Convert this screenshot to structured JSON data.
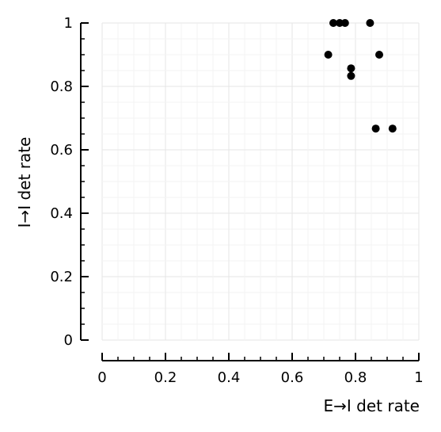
{
  "chart_data": {
    "type": "scatter",
    "xlabel": "E→I det rate",
    "ylabel": "I→I det rate",
    "xlim": [
      0,
      1
    ],
    "ylim": [
      0,
      1
    ],
    "grid": true,
    "x_ticks": [
      0,
      0.2,
      0.4,
      0.6,
      0.8,
      1
    ],
    "x_tick_labels": [
      "0",
      "0.2",
      "0.4",
      "0.6",
      "0.8",
      "1"
    ],
    "y_ticks": [
      0,
      0.2,
      0.4,
      0.6,
      0.8,
      1
    ],
    "y_tick_labels": [
      "0",
      "0.2",
      "0.4",
      "0.6",
      "0.8",
      "1"
    ],
    "points": [
      {
        "x": 0.73,
        "y": 1.0
      },
      {
        "x": 0.75,
        "y": 1.0
      },
      {
        "x": 0.767,
        "y": 1.0
      },
      {
        "x": 0.846,
        "y": 1.0
      },
      {
        "x": 0.714,
        "y": 0.9
      },
      {
        "x": 0.875,
        "y": 0.9
      },
      {
        "x": 0.786,
        "y": 0.857
      },
      {
        "x": 0.786,
        "y": 0.833
      },
      {
        "x": 0.864,
        "y": 0.667
      },
      {
        "x": 0.917,
        "y": 0.667
      }
    ],
    "colors": {
      "points": "#000000",
      "axis": "#000000",
      "grid_major": "#e6e6e6",
      "grid_minor": "#f3f3f3"
    }
  }
}
